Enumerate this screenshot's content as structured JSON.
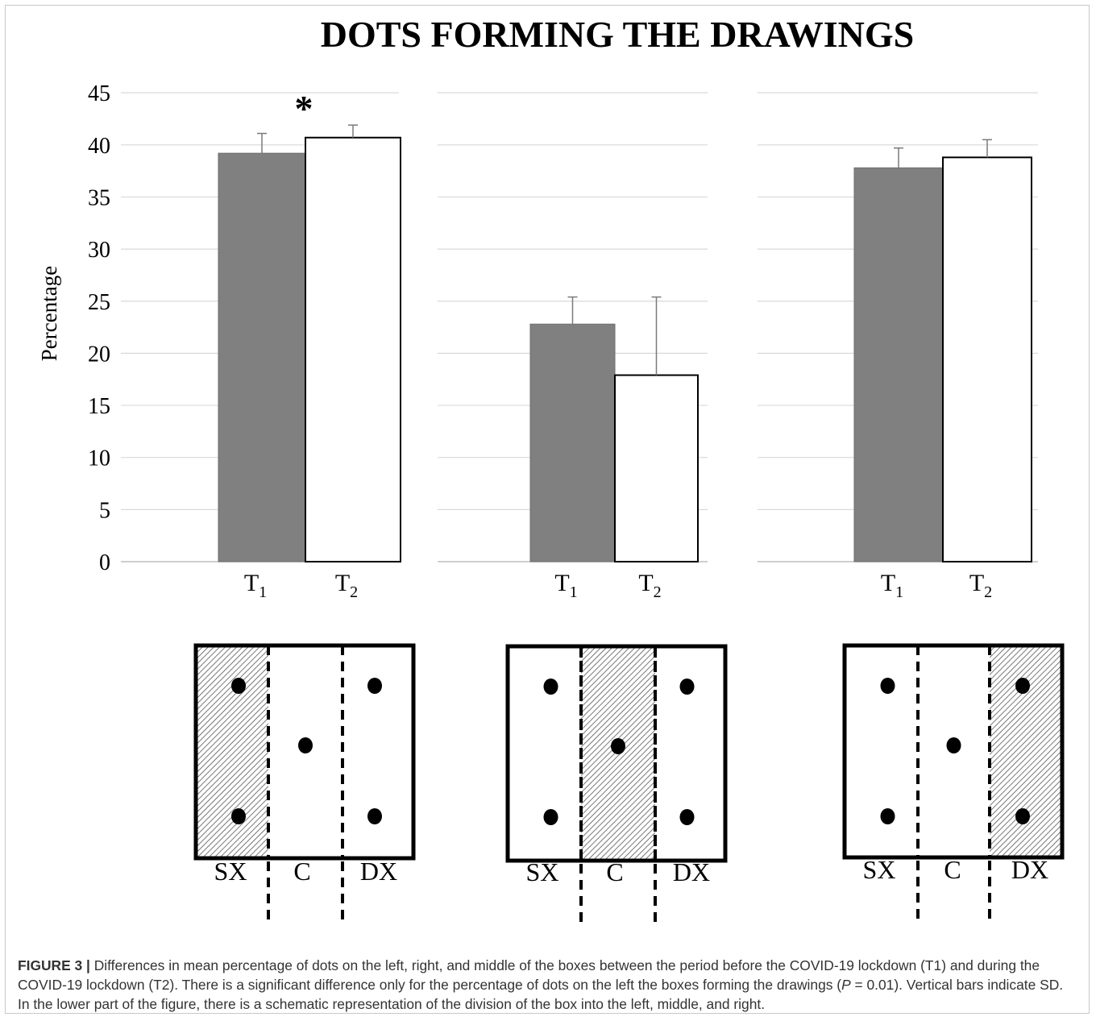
{
  "chart_data": {
    "type": "bar",
    "title": "DOTS FORMING THE DRAWINGS",
    "ylabel": "Percentage",
    "ylim": [
      0,
      45
    ],
    "yticks": [
      "0",
      "5",
      "10",
      "15",
      "20",
      "25",
      "30",
      "35",
      "40",
      "45"
    ],
    "grid": true,
    "annotation": "*",
    "panels": [
      {
        "categories": [
          "T1",
          "T2"
        ],
        "category_labels": [
          {
            "base": "T",
            "sub": "1"
          },
          {
            "base": "T",
            "sub": "2"
          }
        ],
        "values": [
          39.2,
          40.7
        ],
        "errors": [
          1.9,
          1.2
        ],
        "colors": [
          "#808080",
          "#ffffff"
        ],
        "significant": true
      },
      {
        "categories": [
          "T1",
          "T2"
        ],
        "category_labels": [
          {
            "base": "T",
            "sub": "1"
          },
          {
            "base": "T",
            "sub": "2"
          }
        ],
        "values": [
          22.8,
          17.9
        ],
        "errors": [
          2.6,
          7.5
        ],
        "colors": [
          "#808080",
          "#ffffff"
        ],
        "significant": false
      },
      {
        "categories": [
          "T1",
          "T2"
        ],
        "category_labels": [
          {
            "base": "T",
            "sub": "1"
          },
          {
            "base": "T",
            "sub": "2"
          }
        ],
        "values": [
          37.8,
          38.8
        ],
        "errors": [
          1.9,
          1.7
        ],
        "colors": [
          "#808080",
          "#ffffff"
        ],
        "significant": false
      }
    ]
  },
  "schematics": [
    {
      "highlight": "SX",
      "labels": [
        "SX",
        "C",
        "DX"
      ]
    },
    {
      "highlight": "C",
      "labels": [
        "SX",
        "C",
        "DX"
      ]
    },
    {
      "highlight": "DX",
      "labels": [
        "SX",
        "C",
        "DX"
      ]
    }
  ],
  "caption": {
    "label": "FIGURE 3 |",
    "text_before_p": " Differences in mean percentage of dots on the left, right, and middle of the boxes between the period before the COVID-19 lockdown (T1) and during the COVID-19 lockdown (T2). There is a significant difference only for the percentage of dots on the left the boxes forming the drawings (",
    "p_symbol": "P",
    "text_after_p": " = 0.01). Vertical bars indicate SD. In the lower part of the figure, there is a schematic representation of the division of the box into the left, middle, and right."
  },
  "colors": {
    "bar_t1": "#808080",
    "bar_t2": "#ffffff",
    "grid": "#d9d9d9",
    "ink": "#000000"
  }
}
